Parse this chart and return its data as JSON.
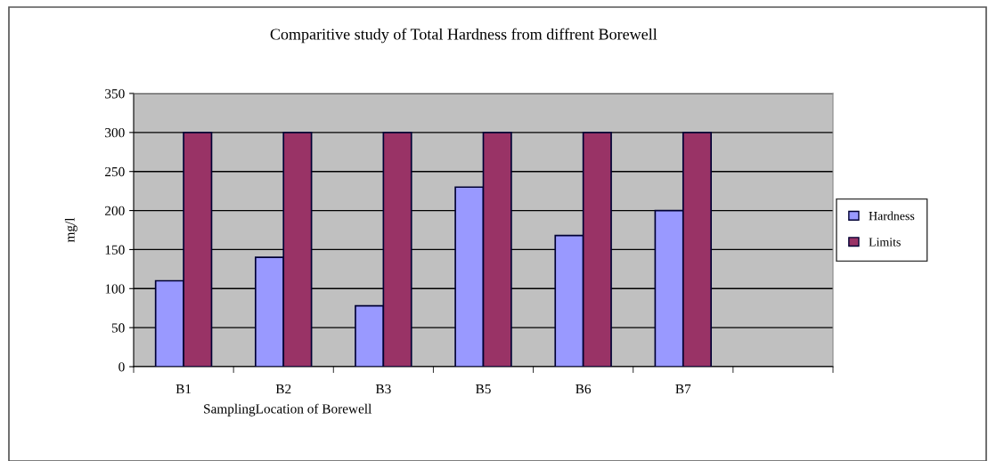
{
  "chart_data": {
    "type": "bar",
    "title": "Comparitive study of Total Hardness from diffrent Borewell",
    "xlabel": "SamplingLocation of Borewell",
    "ylabel": "mg/l",
    "categories": [
      "B1",
      "B2",
      "B3",
      "B5",
      "B6",
      "B7",
      null
    ],
    "series": [
      {
        "name": "Hardness",
        "color": "#9999ff",
        "values": [
          110,
          140,
          78,
          230,
          168,
          200,
          null
        ]
      },
      {
        "name": "Limits",
        "color": "#993366",
        "values": [
          300,
          300,
          300,
          300,
          300,
          300,
          null
        ]
      }
    ],
    "ylim": [
      0,
      350
    ],
    "yticks": [
      0,
      50,
      100,
      150,
      200,
      250,
      300,
      350
    ],
    "grid": "y",
    "legend": "right"
  }
}
